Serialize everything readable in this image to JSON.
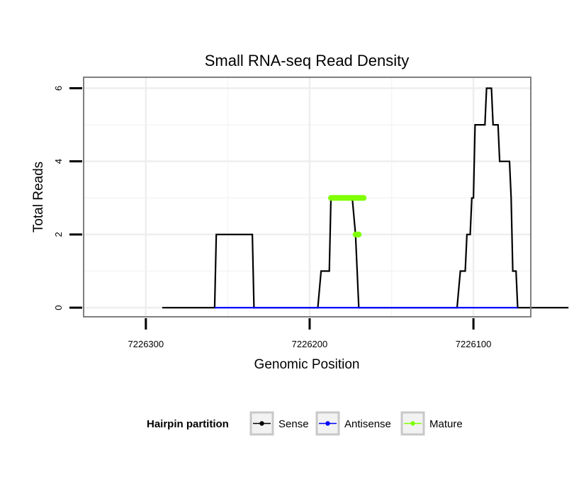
{
  "chart_data": {
    "type": "line",
    "title": "Small RNA-seq Read Density",
    "xlabel": "Genomic Position",
    "ylabel": "Total Reads",
    "x_reversed": true,
    "xlim": [
      7226338,
      7226065
    ],
    "ylim": [
      -0.25,
      6.3
    ],
    "x_ticks": [
      7226300,
      7226200,
      7226100
    ],
    "x_tick_labels": [
      "7226300",
      "7226200",
      "7226100"
    ],
    "y_ticks": [
      0,
      2,
      4,
      6
    ],
    "y_tick_labels": [
      "0",
      "2",
      "4",
      "6"
    ],
    "grid": true,
    "legend": {
      "title": "Hairpin partition",
      "position": "bottom",
      "entries": [
        {
          "name": "Sense",
          "color": "#000000"
        },
        {
          "name": "Antisense",
          "color": "#0000ff"
        },
        {
          "name": "Mature",
          "color": "#7fff00"
        }
      ]
    },
    "series": [
      {
        "name": "Sense",
        "color": "#000000",
        "points": [
          [
            7226290,
            0
          ],
          [
            7226258,
            0
          ],
          [
            7226257,
            2
          ],
          [
            7226235,
            2
          ],
          [
            7226234,
            0
          ],
          [
            7226195,
            0
          ],
          [
            7226193,
            1
          ],
          [
            7226188,
            1
          ],
          [
            7226187,
            3
          ],
          [
            7226174,
            3
          ],
          [
            7226172,
            2
          ],
          [
            7226170,
            0
          ],
          [
            7226110,
            0
          ],
          [
            7226108,
            1
          ],
          [
            7226105,
            1
          ],
          [
            7226104,
            2
          ],
          [
            7226102,
            2
          ],
          [
            7226101,
            3
          ],
          [
            7226100,
            3
          ],
          [
            7226099,
            5
          ],
          [
            7226093,
            5
          ],
          [
            7226092,
            6
          ],
          [
            7226089,
            6
          ],
          [
            7226088,
            5
          ],
          [
            7226085,
            5
          ],
          [
            7226084,
            4
          ],
          [
            7226078,
            4
          ],
          [
            7226077,
            3
          ],
          [
            7226076,
            1
          ],
          [
            7226074,
            1
          ],
          [
            7226073,
            0
          ],
          [
            7226042,
            0
          ]
        ]
      },
      {
        "name": "Antisense",
        "color": "#0000ff",
        "points": [
          [
            7226258,
            0
          ],
          [
            7226234,
            0
          ],
          [
            7226195,
            0
          ],
          [
            7226170,
            0
          ],
          [
            7226110,
            0
          ],
          [
            7226073,
            0
          ]
        ]
      },
      {
        "name": "Mature",
        "color": "#7fff00",
        "segments": [
          [
            [
              7226187,
              3
            ],
            [
              7226167,
              3
            ]
          ],
          [
            [
              7226172,
              2
            ],
            [
              7226170,
              2
            ]
          ]
        ]
      }
    ]
  }
}
